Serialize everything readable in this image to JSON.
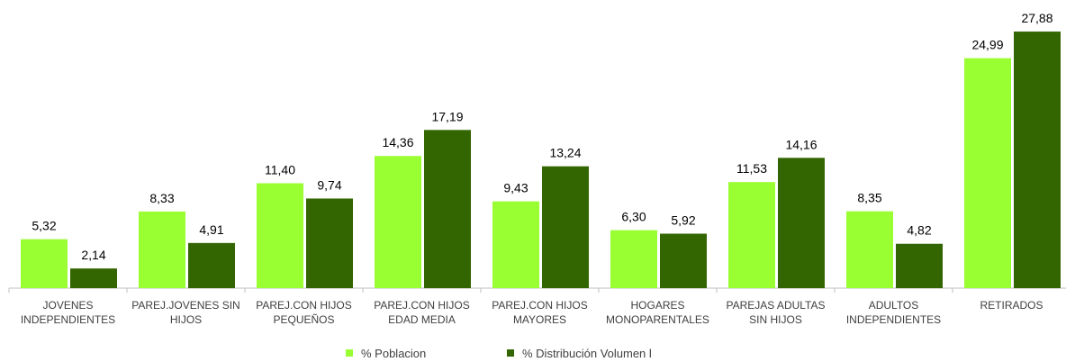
{
  "chart_data": {
    "type": "bar",
    "categories": [
      "JOVENES INDEPENDIENTES",
      "PAREJ.JOVENES SIN HIJOS",
      "PAREJ.CON HIJOS PEQUEÑOS",
      "PAREJ.CON HIJOS EDAD MEDIA",
      "PAREJ.CON HIJOS MAYORES",
      "HOGARES MONOPARENTALES",
      "PAREJAS ADULTAS SIN HIJOS",
      "ADULTOS INDEPENDIENTES",
      "RETIRADOS"
    ],
    "series": [
      {
        "name": "% Poblacion",
        "color": "#99ff33",
        "values": [
          5.32,
          8.33,
          11.4,
          14.36,
          9.43,
          6.3,
          11.53,
          8.35,
          24.99
        ],
        "value_labels": [
          "5,32",
          "8,33",
          "11,40",
          "14,36",
          "9,43",
          "6,30",
          "11,53",
          "8,35",
          "24,99"
        ]
      },
      {
        "name": "% Distribución Volumen l",
        "color": "#336600",
        "values": [
          2.14,
          4.91,
          9.74,
          17.19,
          13.24,
          5.92,
          14.16,
          4.82,
          27.88
        ],
        "value_labels": [
          "2,14",
          "4,91",
          "9,74",
          "17,19",
          "13,24",
          "5,92",
          "14,16",
          "4,82",
          "27,88"
        ]
      }
    ],
    "ylim": [
      0,
      30
    ],
    "legend": "bottom"
  }
}
